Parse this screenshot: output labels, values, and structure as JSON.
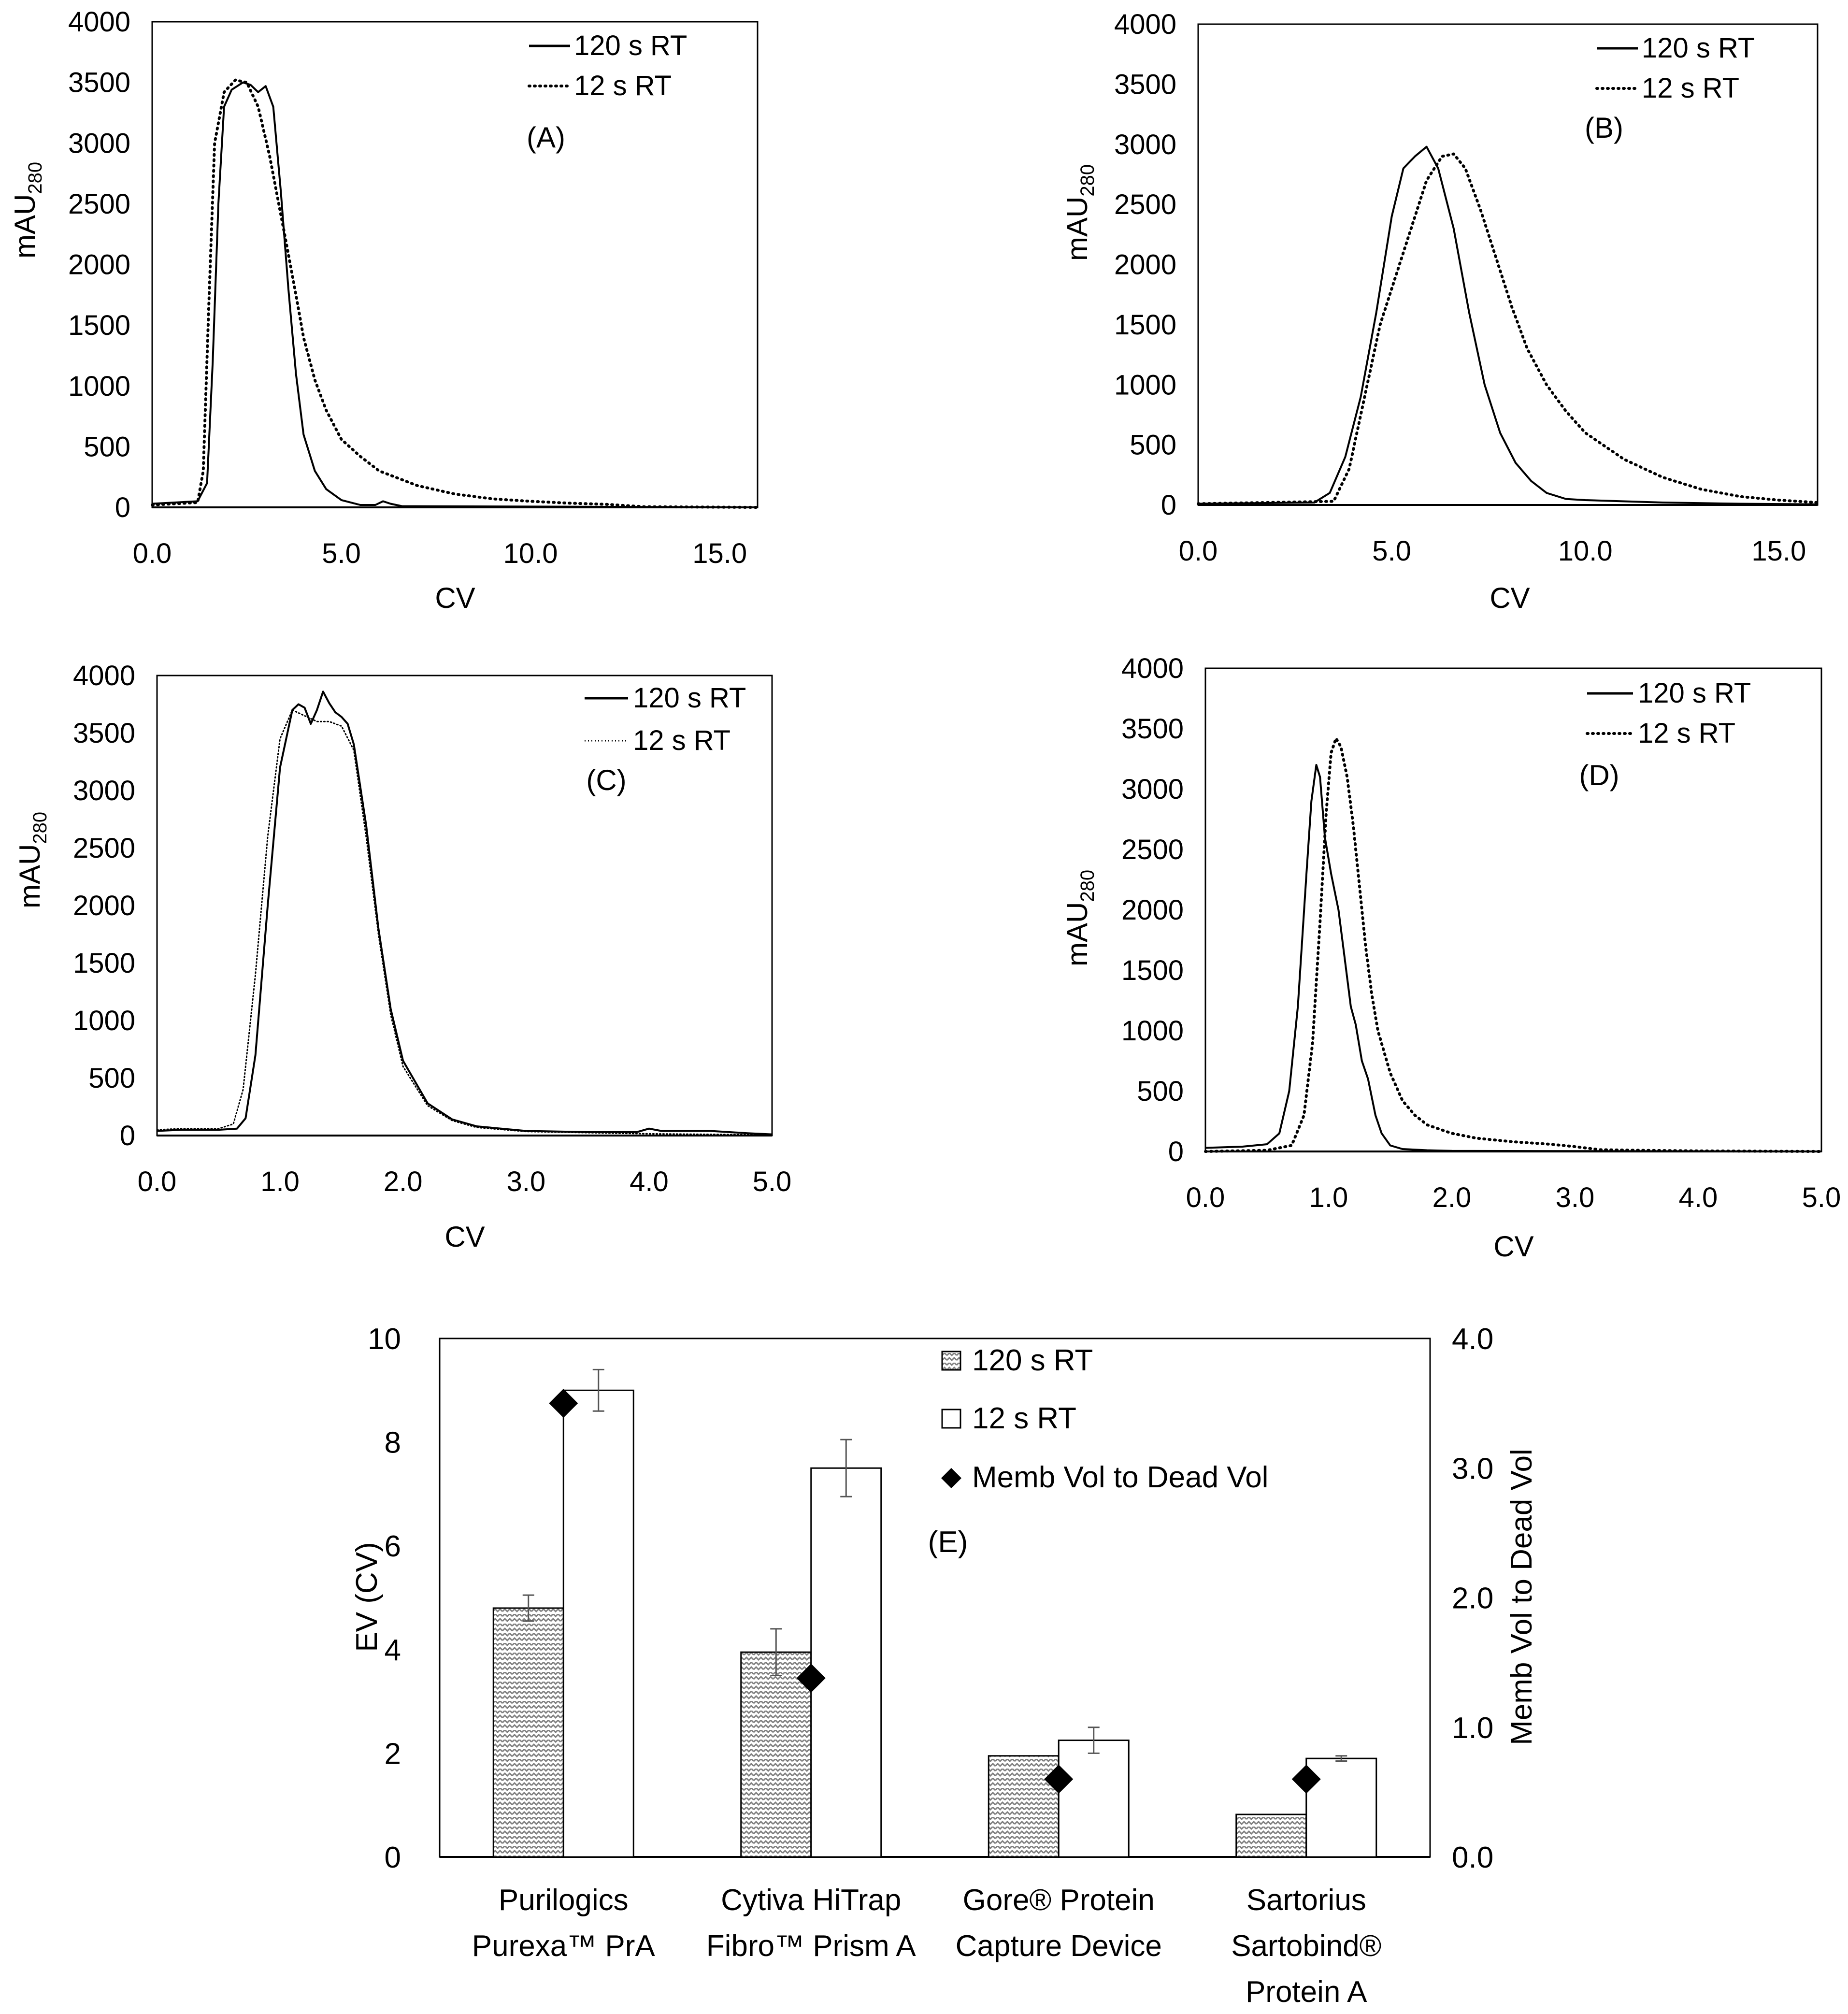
{
  "chart_data": [
    {
      "id": "A",
      "type": "line",
      "panel_label": "(A)",
      "xlabel": "CV",
      "ylabel_main": "mAU",
      "ylabel_sub": "280",
      "xlim": [
        0,
        16
      ],
      "ylim": [
        0,
        4000
      ],
      "x_ticks": [
        0,
        5,
        10,
        15
      ],
      "x_tick_labels": [
        "0.0",
        "5.0",
        "10.0",
        "15.0"
      ],
      "y_ticks": [
        0,
        500,
        1000,
        1500,
        2000,
        2500,
        3000,
        3500,
        4000
      ],
      "y_tick_labels": [
        "0",
        "500",
        "1000",
        "1500",
        "2000",
        "2500",
        "3000",
        "3500",
        "4000"
      ],
      "grid": false,
      "legend_position": "top-right",
      "series": [
        {
          "name": "120 s RT",
          "style": "solid",
          "x": [
            0,
            1.2,
            1.45,
            1.6,
            1.75,
            1.9,
            2.1,
            2.4,
            2.6,
            2.8,
            3.0,
            3.2,
            3.4,
            3.6,
            3.8,
            4.0,
            4.3,
            4.6,
            5.0,
            5.5,
            5.9,
            6.1,
            6.3,
            6.6,
            16
          ],
          "y": [
            30,
            50,
            200,
            1200,
            2500,
            3300,
            3440,
            3500,
            3480,
            3420,
            3470,
            3300,
            2600,
            1800,
            1100,
            600,
            300,
            150,
            60,
            20,
            20,
            50,
            30,
            10,
            0
          ]
        },
        {
          "name": "12 s RT",
          "style": "dotted",
          "x": [
            0,
            1.2,
            1.35,
            1.5,
            1.65,
            1.9,
            2.2,
            2.5,
            2.8,
            3.1,
            3.5,
            3.8,
            4.0,
            4.3,
            4.6,
            5.0,
            5.5,
            6.0,
            7.0,
            8.0,
            9.0,
            10.0,
            11.0,
            12.0,
            12.5,
            13,
            16
          ],
          "y": [
            20,
            40,
            300,
            1700,
            3000,
            3420,
            3520,
            3500,
            3300,
            2900,
            2250,
            1750,
            1400,
            1050,
            800,
            560,
            420,
            300,
            180,
            110,
            70,
            50,
            35,
            25,
            15,
            5,
            0
          ]
        }
      ]
    },
    {
      "id": "B",
      "type": "line",
      "panel_label": "(B)",
      "xlabel": "CV",
      "ylabel_main": "mAU",
      "ylabel_sub": "280",
      "xlim": [
        0,
        16
      ],
      "ylim": [
        0,
        4000
      ],
      "x_ticks": [
        0,
        5,
        10,
        15
      ],
      "x_tick_labels": [
        "0.0",
        "5.0",
        "10.0",
        "15.0"
      ],
      "y_ticks": [
        0,
        500,
        1000,
        1500,
        2000,
        2500,
        3000,
        3500,
        4000
      ],
      "y_tick_labels": [
        "0",
        "500",
        "1000",
        "1500",
        "2000",
        "2500",
        "3000",
        "3500",
        "4000"
      ],
      "grid": false,
      "legend_position": "top-right",
      "series": [
        {
          "name": "120 s RT",
          "style": "solid",
          "x": [
            0,
            3.0,
            3.4,
            3.8,
            4.2,
            4.6,
            5.0,
            5.3,
            5.6,
            5.9,
            6.2,
            6.6,
            7.0,
            7.4,
            7.8,
            8.2,
            8.6,
            9.0,
            9.5,
            10.0,
            11.0,
            12.0,
            13.0,
            14.0,
            16.0
          ],
          "y": [
            10,
            20,
            100,
            400,
            900,
            1600,
            2400,
            2800,
            2900,
            2980,
            2800,
            2300,
            1600,
            1000,
            600,
            350,
            200,
            100,
            50,
            40,
            30,
            20,
            15,
            10,
            5
          ]
        },
        {
          "name": "12 s RT",
          "style": "dotted",
          "x": [
            0,
            3.5,
            3.9,
            4.3,
            4.7,
            5.1,
            5.5,
            5.9,
            6.3,
            6.6,
            6.9,
            7.3,
            7.7,
            8.1,
            8.5,
            9.0,
            9.5,
            10.0,
            11.0,
            12.0,
            13.0,
            14.0,
            15.0,
            16.0
          ],
          "y": [
            10,
            30,
            300,
            900,
            1500,
            1900,
            2300,
            2700,
            2900,
            2920,
            2800,
            2450,
            2050,
            1650,
            1300,
            1000,
            780,
            600,
            380,
            230,
            130,
            70,
            40,
            20
          ]
        }
      ]
    },
    {
      "id": "C",
      "type": "line",
      "panel_label": "(C)",
      "xlabel": "CV",
      "ylabel_main": "mAU",
      "ylabel_sub": "280",
      "xlim": [
        0,
        5
      ],
      "ylim": [
        0,
        4000
      ],
      "x_ticks": [
        0,
        1,
        2,
        3,
        4,
        5
      ],
      "x_tick_labels": [
        "0.0",
        "1.0",
        "2.0",
        "3.0",
        "4.0",
        "5.0"
      ],
      "y_ticks": [
        0,
        500,
        1000,
        1500,
        2000,
        2500,
        3000,
        3500,
        4000
      ],
      "y_tick_labels": [
        "0",
        "500",
        "1000",
        "1500",
        "2000",
        "2500",
        "3000",
        "3500",
        "4000"
      ],
      "grid": false,
      "legend_position": "top-right",
      "series": [
        {
          "name": "120 s RT",
          "style": "solid",
          "x": [
            0,
            0.2,
            0.5,
            0.65,
            0.72,
            0.8,
            0.9,
            1.0,
            1.1,
            1.15,
            1.2,
            1.25,
            1.3,
            1.35,
            1.4,
            1.45,
            1.5,
            1.55,
            1.6,
            1.7,
            1.8,
            1.9,
            2.0,
            2.2,
            2.4,
            2.6,
            3.0,
            3.5,
            3.9,
            4.0,
            4.1,
            4.5,
            4.8,
            5.0
          ],
          "y": [
            40,
            50,
            50,
            60,
            150,
            700,
            2000,
            3200,
            3700,
            3750,
            3720,
            3580,
            3700,
            3860,
            3760,
            3680,
            3640,
            3580,
            3400,
            2700,
            1800,
            1100,
            650,
            280,
            140,
            80,
            40,
            30,
            30,
            60,
            40,
            40,
            20,
            10
          ]
        },
        {
          "name": "12 s RT",
          "style": "dotted",
          "x": [
            0,
            0.2,
            0.5,
            0.62,
            0.7,
            0.8,
            0.9,
            1.0,
            1.1,
            1.2,
            1.3,
            1.4,
            1.5,
            1.6,
            1.7,
            1.8,
            1.9,
            2.0,
            2.2,
            2.4,
            2.6,
            3.0,
            3.5,
            4.0,
            4.5,
            5.0
          ],
          "y": [
            50,
            60,
            60,
            100,
            400,
            1400,
            2600,
            3450,
            3700,
            3650,
            3600,
            3600,
            3560,
            3350,
            2600,
            1750,
            1050,
            600,
            260,
            130,
            70,
            35,
            25,
            15,
            10,
            5
          ]
        }
      ]
    },
    {
      "id": "D",
      "type": "line",
      "panel_label": "(D)",
      "xlabel": "CV",
      "ylabel_main": "mAU",
      "ylabel_sub": "280",
      "xlim": [
        0,
        5
      ],
      "ylim": [
        0,
        4000
      ],
      "x_ticks": [
        0,
        1,
        2,
        3,
        4,
        5
      ],
      "x_tick_labels": [
        "0.0",
        "1.0",
        "2.0",
        "3.0",
        "4.0",
        "5.0"
      ],
      "y_ticks": [
        0,
        500,
        1000,
        1500,
        2000,
        2500,
        3000,
        3500,
        4000
      ],
      "y_tick_labels": [
        "0",
        "500",
        "1000",
        "1500",
        "2000",
        "2500",
        "3000",
        "3500",
        "4000"
      ],
      "grid": false,
      "legend_position": "top-right",
      "series": [
        {
          "name": "120 s RT",
          "style": "solid",
          "x": [
            0,
            0.3,
            0.5,
            0.6,
            0.68,
            0.75,
            0.82,
            0.86,
            0.9,
            0.93,
            0.97,
            1.02,
            1.08,
            1.13,
            1.18,
            1.22,
            1.27,
            1.32,
            1.38,
            1.43,
            1.5,
            1.6,
            1.8,
            2.0,
            5.0
          ],
          "y": [
            30,
            40,
            60,
            150,
            500,
            1200,
            2300,
            2900,
            3200,
            3100,
            2600,
            2300,
            2000,
            1600,
            1200,
            1050,
            750,
            600,
            300,
            150,
            50,
            20,
            10,
            5,
            0
          ]
        },
        {
          "name": "12 s RT",
          "style": "dotted",
          "x": [
            0,
            0.5,
            0.7,
            0.8,
            0.87,
            0.93,
            0.98,
            1.02,
            1.06,
            1.1,
            1.15,
            1.2,
            1.25,
            1.3,
            1.35,
            1.4,
            1.5,
            1.6,
            1.7,
            1.8,
            2.0,
            2.2,
            2.5,
            2.8,
            3.0,
            3.2,
            3.5,
            4.0,
            5.0
          ],
          "y": [
            0,
            10,
            50,
            300,
            900,
            1900,
            2800,
            3300,
            3420,
            3350,
            3100,
            2700,
            2200,
            1700,
            1300,
            1000,
            650,
            420,
            300,
            220,
            150,
            110,
            80,
            60,
            40,
            15,
            10,
            5,
            0
          ]
        }
      ]
    },
    {
      "id": "E",
      "type": "bar",
      "panel_label": "(E)",
      "ylabel": "EV (CV)",
      "y2label": "Memb Vol to Dead Vol",
      "ylim": [
        0,
        10
      ],
      "y2lim": [
        0,
        4
      ],
      "y_ticks": [
        0,
        2,
        4,
        6,
        8,
        10
      ],
      "y_tick_labels": [
        "0",
        "2",
        "4",
        "6",
        "8",
        "10"
      ],
      "y2_ticks": [
        0,
        1,
        2,
        3,
        4
      ],
      "y2_tick_labels": [
        "0.0",
        "1.0",
        "2.0",
        "3.0",
        "4.0"
      ],
      "grid": false,
      "legend_position": "top-center",
      "categories": [
        [
          "Purilogics",
          "Purexa™ PrA"
        ],
        [
          "Cytiva HiTrap",
          "Fibro™ Prism A"
        ],
        [
          "Gore® Protein",
          "Capture Device"
        ],
        [
          "Sartorius",
          "Sartobind®",
          "Protein A"
        ]
      ],
      "series": [
        {
          "name": "120 s RT",
          "kind": "bar",
          "axis": "left",
          "pattern": "hatched",
          "values": [
            4.8,
            3.95,
            1.95,
            0.82
          ],
          "errors": [
            0.25,
            0.45,
            0.0,
            0.0
          ]
        },
        {
          "name": "12 s RT",
          "kind": "bar",
          "axis": "left",
          "pattern": "open",
          "values": [
            9.0,
            7.5,
            2.25,
            1.9
          ],
          "errors": [
            0.4,
            0.55,
            0.25,
            0.05
          ]
        },
        {
          "name": "Memb Vol to Dead Vol",
          "kind": "marker",
          "axis": "right",
          "marker": "diamond",
          "values": [
            3.5,
            1.38,
            0.6,
            0.6
          ]
        }
      ]
    }
  ]
}
